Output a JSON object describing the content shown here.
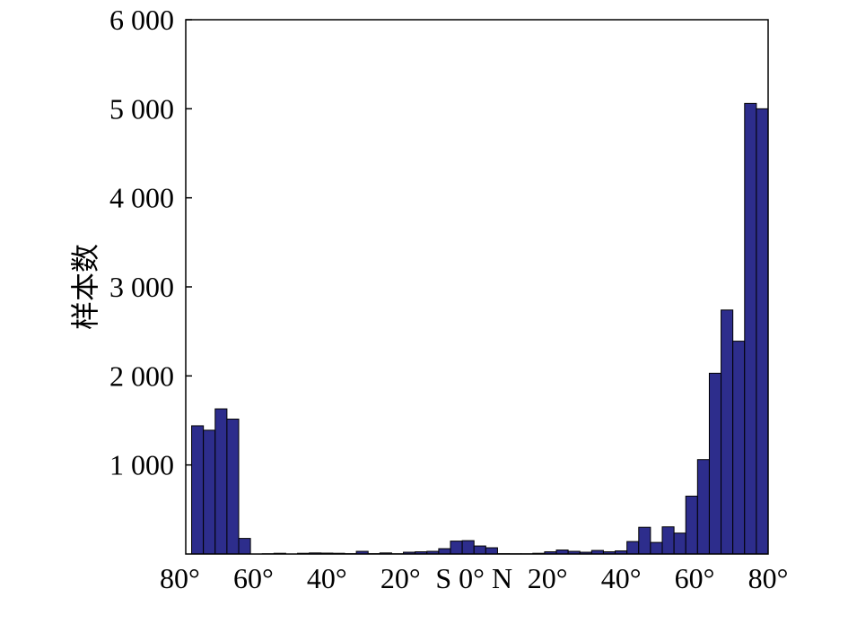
{
  "chart_data": {
    "type": "bar",
    "x": [
      -75.2,
      -72,
      -68.8,
      -65.6,
      -62.4,
      -59.2,
      -56,
      -52.8,
      -49.6,
      -46.4,
      -43.2,
      -40,
      -36.8,
      -33.6,
      -30.4,
      -27.2,
      -24,
      -20.8,
      -17.6,
      -14.4,
      -11.2,
      -8,
      -4.8,
      -1.6,
      1.6,
      4.8,
      8,
      11.2,
      14.4,
      17.6,
      20.8,
      24,
      27.2,
      30.4,
      33.6,
      36.8,
      40,
      43.2,
      46.4,
      49.6,
      52.8,
      56,
      59.2,
      62.4,
      65.6,
      68.8,
      72,
      75.2,
      78.4
    ],
    "bin_width": 3.2,
    "values": [
      1440,
      1390,
      1630,
      1515,
      175,
      0,
      3,
      8,
      0,
      8,
      12,
      10,
      8,
      4,
      30,
      4,
      12,
      3,
      20,
      25,
      30,
      60,
      145,
      150,
      90,
      70,
      4,
      3,
      3,
      8,
      25,
      45,
      30,
      20,
      40,
      25,
      35,
      140,
      300,
      130,
      305,
      235,
      650,
      1060,
      2030,
      2740,
      2390,
      5060,
      5000
    ],
    "ylabel": "样本数",
    "xlim": [
      -78.4,
      80
    ],
    "ylim": [
      0,
      6000
    ],
    "x_ticks": [
      -80,
      -60,
      -40,
      -20,
      0,
      20,
      40,
      60,
      80
    ],
    "x_tick_labels": [
      "80°",
      "60°",
      "40°",
      "20°",
      "S 0° N",
      "20°",
      "40°",
      "60°",
      "80°"
    ],
    "y_ticks": [
      1000,
      2000,
      3000,
      4000,
      5000,
      6000
    ],
    "y_tick_labels": [
      "1 000",
      "2 000",
      "3 000",
      "4 000",
      "5 000",
      "6 000"
    ],
    "grid": false,
    "bar_color": "#2d2d8c"
  }
}
